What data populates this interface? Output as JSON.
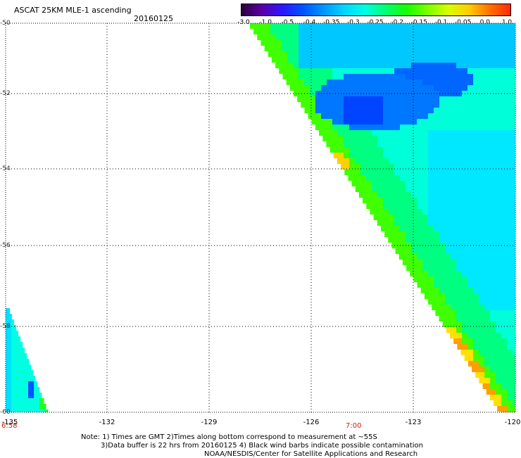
{
  "title": "ASCAT 25KM MLE-1 ascending",
  "date": "20160125",
  "colorbar": {
    "ticks": [
      "-3.0",
      "-1.0",
      "-0.5",
      "-0.4",
      "-0.35",
      "-0.3",
      "-0.25",
      "-0.2",
      "-0.15",
      "-0.1",
      "-0.05",
      "0.0",
      "1.0"
    ],
    "colors": [
      "#2a003a",
      "#5b00a8",
      "#2a18ff",
      "#0055ff",
      "#0099ff",
      "#00d8ff",
      "#00ffe0",
      "#00ff70",
      "#18ff00",
      "#7dff00",
      "#d8ff00",
      "#ffcc00",
      "#ff7000",
      "#ff2a00"
    ]
  },
  "lat_labels": [
    "-50",
    "-52",
    "-54",
    "-56",
    "-58",
    "-60"
  ],
  "lon_labels": [
    "-135",
    "-132",
    "-129",
    "-126",
    "-123",
    "-120"
  ],
  "time_labels": [
    "6:58",
    "7:00"
  ],
  "notes": {
    "line1": "Note: 1) Times are GMT 2)Times along bottom correspond to measurement at ~55S",
    "line2": "3)Data buffer is 22 hrs from 20160125 4) Black wind barbs indicate possible contamination",
    "line3": "NOAA/NESDIS/Center for Satellite Applications and Research"
  }
}
